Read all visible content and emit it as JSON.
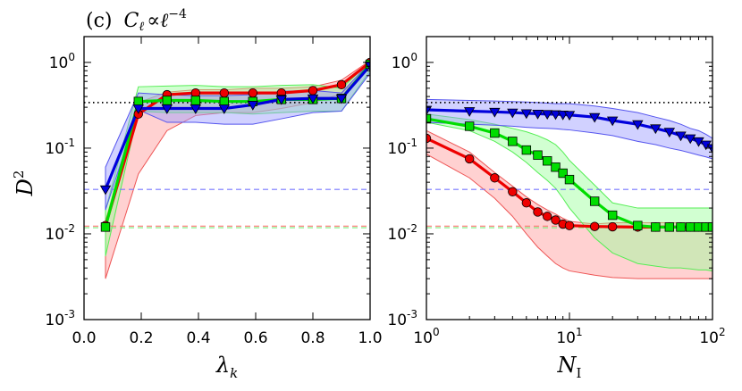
{
  "chart_data": [
    {
      "type": "line",
      "panel": "left",
      "title": "(c) C_ℓ ∝ ℓ^-4",
      "title_parts": {
        "label": "(c)",
        "lhs": "C",
        "lhs_sub": "ℓ",
        "rel": "∝",
        "rhs": "ℓ",
        "rhs_sup": "−4"
      },
      "xlabel": "λ",
      "xlabel_sub": "k",
      "ylabel": "D",
      "ylabel_sup": "2",
      "xscale": "linear",
      "yscale": "log",
      "xlim": [
        0.0,
        1.0
      ],
      "ylim": [
        0.001,
        2.0
      ],
      "xticks": [
        0.0,
        0.2,
        0.4,
        0.6,
        0.8,
        1.0
      ],
      "xtick_labels": [
        "0.0",
        "0.2",
        "0.4",
        "0.6",
        "0.8",
        "1.0"
      ],
      "yticks": [
        0.001,
        0.01,
        0.1,
        1.0
      ],
      "ytick_labels": [
        {
          "base": "10",
          "exp": "-3"
        },
        {
          "base": "10",
          "exp": "-2"
        },
        {
          "base": "10",
          "exp": "-1"
        },
        {
          "base": "10",
          "exp": "0"
        }
      ],
      "hlines": [
        {
          "y": 0.34,
          "color": "#000000",
          "style": "dotted"
        },
        {
          "y": 0.033,
          "color": "#7777ff",
          "style": "dashed"
        },
        {
          "y": 0.0123,
          "color": "#ff7777",
          "style": "dashed"
        },
        {
          "y": 0.0118,
          "color": "#77ee77",
          "style": "dashed"
        }
      ],
      "series": [
        {
          "name": "red",
          "color": "#ee0000",
          "band_color": "#ff9999",
          "band_edge": "#ee5555",
          "marker": "circle",
          "x": [
            0.075,
            0.19,
            0.29,
            0.39,
            0.49,
            0.59,
            0.69,
            0.8,
            0.9,
            1.0
          ],
          "y": [
            0.0125,
            0.25,
            0.42,
            0.44,
            0.44,
            0.44,
            0.44,
            0.47,
            0.55,
            1.0
          ],
          "upper": [
            0.014,
            0.34,
            0.45,
            0.48,
            0.48,
            0.5,
            0.5,
            0.52,
            0.62,
            1.05
          ],
          "lower": [
            0.003,
            0.05,
            0.16,
            0.24,
            0.26,
            0.26,
            0.29,
            0.34,
            0.43,
            0.9
          ]
        },
        {
          "name": "green",
          "color": "#00dd00",
          "band_color": "#99ff99",
          "band_edge": "#55ee55",
          "marker": "square",
          "x": [
            0.075,
            0.19,
            0.29,
            0.39,
            0.49,
            0.59,
            0.69,
            0.8,
            0.9,
            1.0
          ],
          "y": [
            0.012,
            0.35,
            0.36,
            0.36,
            0.35,
            0.35,
            0.37,
            0.37,
            0.38,
            0.95
          ],
          "upper": [
            0.019,
            0.52,
            0.53,
            0.54,
            0.52,
            0.52,
            0.54,
            0.55,
            0.5,
            1.02
          ],
          "lower": [
            0.0055,
            0.27,
            0.26,
            0.26,
            0.26,
            0.25,
            0.26,
            0.27,
            0.27,
            0.8
          ]
        },
        {
          "name": "blue",
          "color": "#0000dd",
          "band_color": "#9999ff",
          "band_edge": "#5555ee",
          "marker": "triangle-down",
          "x": [
            0.075,
            0.19,
            0.29,
            0.39,
            0.49,
            0.59,
            0.69,
            0.8,
            0.9,
            1.0
          ],
          "y": [
            0.033,
            0.29,
            0.29,
            0.29,
            0.29,
            0.32,
            0.37,
            0.38,
            0.38,
            0.92
          ],
          "upper": [
            0.06,
            0.44,
            0.42,
            0.41,
            0.41,
            0.42,
            0.46,
            0.47,
            0.44,
            1.0
          ],
          "lower": [
            0.019,
            0.28,
            0.2,
            0.2,
            0.19,
            0.19,
            0.22,
            0.26,
            0.27,
            0.75
          ]
        }
      ]
    },
    {
      "type": "line",
      "panel": "right",
      "xlabel": "N",
      "xlabel_sub": "I",
      "xscale": "log",
      "yscale": "log",
      "xlim": [
        1,
        100
      ],
      "ylim": [
        0.001,
        2.0
      ],
      "xticks": [
        1,
        10,
        100
      ],
      "xtick_labels": [
        {
          "base": "10",
          "exp": "0"
        },
        {
          "base": "10",
          "exp": "1"
        },
        {
          "base": "10",
          "exp": "2"
        }
      ],
      "yticks": [
        0.001,
        0.01,
        0.1,
        1.0
      ],
      "ytick_labels": [
        {
          "base": "10",
          "exp": "-3"
        },
        {
          "base": "10",
          "exp": "-2"
        },
        {
          "base": "10",
          "exp": "-1"
        },
        {
          "base": "10",
          "exp": "0"
        }
      ],
      "hlines": [
        {
          "y": 0.34,
          "color": "#000000",
          "style": "dotted"
        },
        {
          "y": 0.033,
          "color": "#7777ff",
          "style": "dashed"
        },
        {
          "y": 0.0123,
          "color": "#ff7777",
          "style": "dashed"
        },
        {
          "y": 0.0118,
          "color": "#77ee77",
          "style": "dashed"
        }
      ],
      "series": [
        {
          "name": "red",
          "color": "#ee0000",
          "band_color": "#ff9999",
          "band_edge": "#ee5555",
          "marker": "circle",
          "x": [
            1,
            2,
            3,
            4,
            5,
            6,
            7,
            8,
            9,
            10,
            15,
            20,
            30,
            40,
            50,
            60,
            70,
            80,
            90,
            100
          ],
          "y": [
            0.13,
            0.075,
            0.045,
            0.031,
            0.023,
            0.018,
            0.016,
            0.0145,
            0.013,
            0.0125,
            0.0122,
            0.0121,
            0.012,
            0.012,
            0.012,
            0.012,
            0.012,
            0.012,
            0.012,
            0.012
          ],
          "upper": [
            0.16,
            0.09,
            0.052,
            0.036,
            0.027,
            0.022,
            0.019,
            0.017,
            0.0152,
            0.014,
            0.013,
            0.0135,
            0.0135,
            0.0135,
            0.0135,
            0.0135,
            0.0135,
            0.0135,
            0.0135,
            0.0135
          ],
          "lower": [
            0.085,
            0.045,
            0.026,
            0.016,
            0.01,
            0.007,
            0.0055,
            0.0045,
            0.004,
            0.0037,
            0.0033,
            0.0031,
            0.003,
            0.003,
            0.003,
            0.003,
            0.003,
            0.003,
            0.003,
            0.003
          ]
        },
        {
          "name": "green",
          "color": "#00dd00",
          "band_color": "#99ff99",
          "band_edge": "#55ee55",
          "marker": "square",
          "x": [
            1,
            2,
            3,
            4,
            5,
            6,
            7,
            8,
            9,
            10,
            15,
            20,
            30,
            40,
            50,
            60,
            70,
            80,
            90,
            100
          ],
          "y": [
            0.22,
            0.18,
            0.15,
            0.12,
            0.095,
            0.083,
            0.071,
            0.06,
            0.051,
            0.043,
            0.024,
            0.0165,
            0.0125,
            0.012,
            0.012,
            0.012,
            0.012,
            0.012,
            0.012,
            0.012
          ],
          "upper": [
            0.25,
            0.215,
            0.19,
            0.17,
            0.155,
            0.14,
            0.125,
            0.11,
            0.09,
            0.072,
            0.037,
            0.023,
            0.02,
            0.02,
            0.02,
            0.02,
            0.02,
            0.02,
            0.02,
            0.02
          ],
          "lower": [
            0.2,
            0.16,
            0.12,
            0.09,
            0.068,
            0.052,
            0.042,
            0.034,
            0.026,
            0.02,
            0.009,
            0.006,
            0.0045,
            0.0042,
            0.004,
            0.004,
            0.0039,
            0.0038,
            0.0038,
            0.0037
          ]
        },
        {
          "name": "blue",
          "color": "#0000dd",
          "band_color": "#9999ff",
          "band_edge": "#5555ee",
          "marker": "triangle-down",
          "x": [
            1,
            2,
            3,
            4,
            5,
            6,
            7,
            8,
            9,
            10,
            15,
            20,
            30,
            40,
            50,
            60,
            70,
            80,
            90,
            100
          ],
          "y": [
            0.28,
            0.27,
            0.265,
            0.26,
            0.255,
            0.252,
            0.25,
            0.248,
            0.246,
            0.244,
            0.23,
            0.21,
            0.19,
            0.17,
            0.155,
            0.14,
            0.13,
            0.12,
            0.11,
            0.1
          ],
          "upper": [
            0.37,
            0.36,
            0.355,
            0.35,
            0.345,
            0.34,
            0.335,
            0.33,
            0.33,
            0.33,
            0.31,
            0.29,
            0.26,
            0.23,
            0.21,
            0.19,
            0.17,
            0.16,
            0.145,
            0.13
          ],
          "lower": [
            0.2,
            0.19,
            0.185,
            0.18,
            0.175,
            0.172,
            0.17,
            0.168,
            0.165,
            0.163,
            0.15,
            0.14,
            0.12,
            0.11,
            0.1,
            0.094,
            0.088,
            0.083,
            0.079,
            0.075
          ]
        }
      ]
    }
  ]
}
